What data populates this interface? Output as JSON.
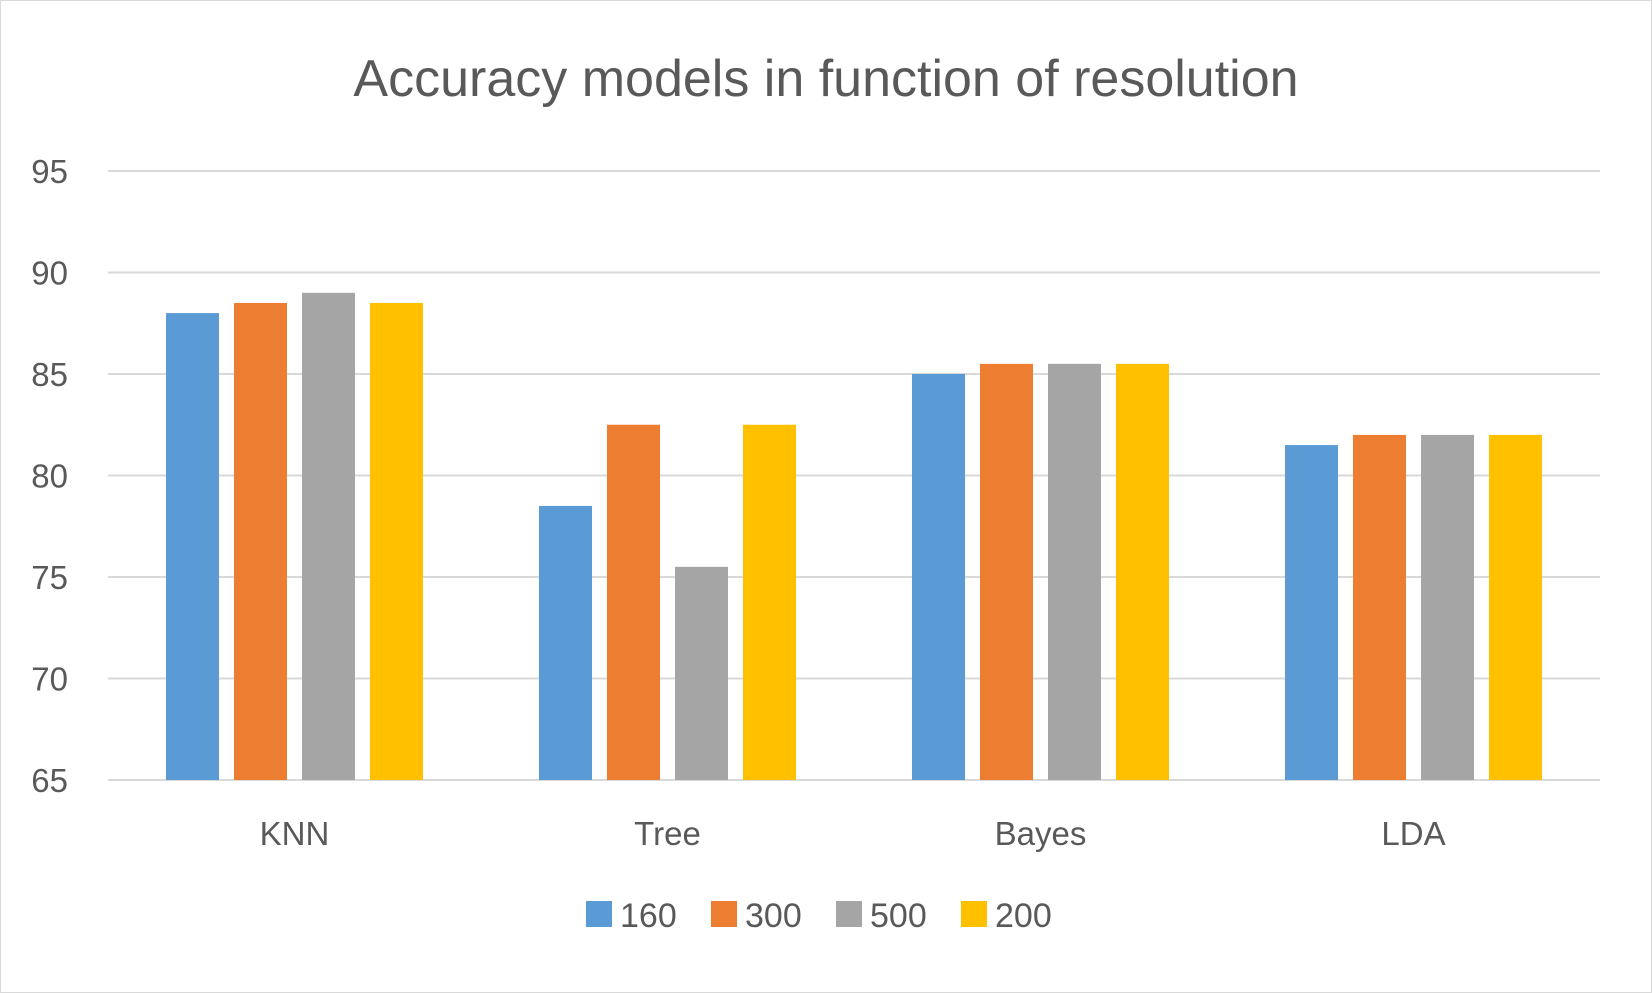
{
  "chart_data": {
    "type": "bar",
    "title": "Accuracy models in function of resolution",
    "xlabel": "",
    "ylabel": "",
    "categories": [
      "KNN",
      "Tree",
      "Bayes",
      "LDA"
    ],
    "ylim": [
      65,
      95
    ],
    "y_ticks": [
      65,
      70,
      75,
      80,
      85,
      90,
      95
    ],
    "grid": true,
    "legend_position": "bottom",
    "series": [
      {
        "name": "160",
        "color": "#5b9bd5",
        "values": [
          88.0,
          78.5,
          85.0,
          81.5
        ]
      },
      {
        "name": "300",
        "color": "#ed7d31",
        "values": [
          88.5,
          82.5,
          85.5,
          82.0
        ]
      },
      {
        "name": "500",
        "color": "#a5a5a5",
        "values": [
          89.0,
          75.5,
          85.5,
          82.0
        ]
      },
      {
        "name": "200",
        "color": "#ffc000",
        "values": [
          88.5,
          82.5,
          85.5,
          82.0
        ]
      }
    ]
  }
}
